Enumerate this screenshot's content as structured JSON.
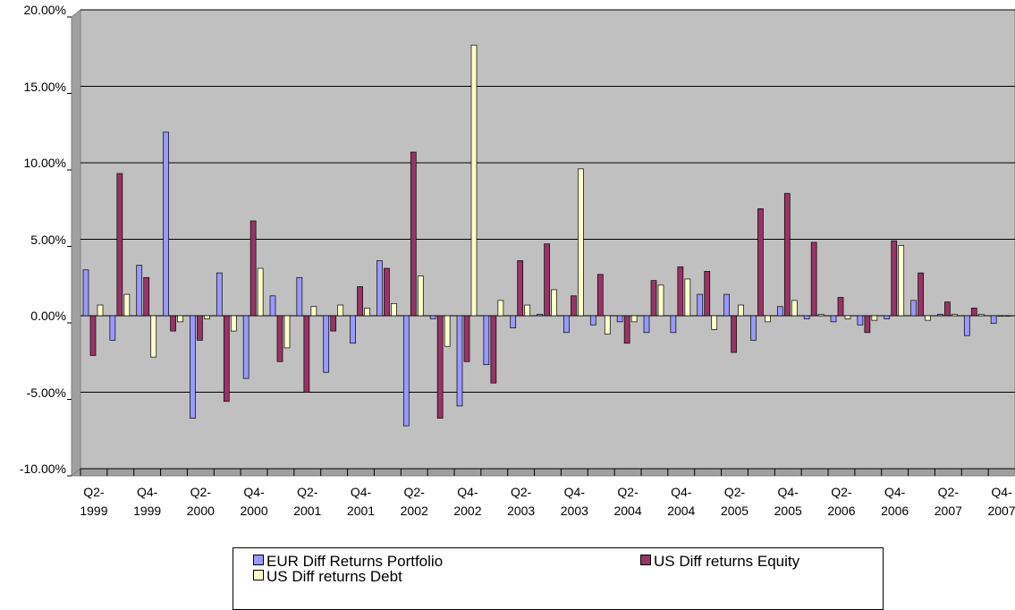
{
  "chart_data": {
    "type": "bar",
    "categories": [
      "Q2-1999",
      null,
      "Q4-1999",
      null,
      "Q2-2000",
      null,
      "Q4-2000",
      null,
      "Q2-2001",
      null,
      "Q4-2001",
      null,
      "Q2-2002",
      null,
      "Q4-2002",
      null,
      "Q2-2003",
      null,
      "Q4-2003",
      null,
      "Q2-2004",
      null,
      "Q4-2004",
      null,
      "Q2-2005",
      null,
      "Q4-2005",
      null,
      "Q2-2006",
      null,
      "Q4-2006",
      null,
      "Q2-2007",
      null,
      "Q4-2007"
    ],
    "series": [
      {
        "name": "EUR Diff Returns Portfolio",
        "color": "#9999ff",
        "values": [
          3.0,
          -1.6,
          3.3,
          12.0,
          -6.7,
          2.8,
          -4.1,
          1.3,
          2.5,
          -3.7,
          -1.8,
          3.6,
          -7.2,
          -0.2,
          -5.9,
          -3.2,
          -0.8,
          0.1,
          -1.1,
          -0.6,
          -0.4,
          -1.1,
          -1.1,
          1.4,
          1.4,
          -1.6,
          0.6,
          -0.2,
          -0.4,
          -0.6,
          -0.2,
          1.0,
          0.1,
          -1.3,
          -0.5
        ]
      },
      {
        "name": "US Diff returns Equity",
        "color": "#993366",
        "values": [
          -2.6,
          9.3,
          2.5,
          -1.0,
          -1.6,
          -5.6,
          6.2,
          -3.0,
          -5.0,
          -1.0,
          1.9,
          3.1,
          10.7,
          -6.7,
          -3.0,
          -4.4,
          3.6,
          4.7,
          1.3,
          2.7,
          -1.8,
          2.3,
          3.2,
          2.9,
          -2.4,
          7.0,
          8.0,
          4.8,
          1.2,
          -1.1,
          4.9,
          2.8,
          0.9,
          0.5,
          0.0
        ]
      },
      {
        "name": "US Diff returns Debt",
        "color": "#ffffcc",
        "values": [
          0.7,
          1.4,
          -2.7,
          -0.4,
          -0.2,
          -1.0,
          3.1,
          -2.1,
          0.6,
          0.7,
          0.5,
          0.8,
          2.6,
          -2.0,
          17.7,
          1.0,
          0.7,
          1.7,
          9.6,
          -1.2,
          -0.4,
          2.0,
          2.4,
          -0.9,
          0.7,
          -0.4,
          1.0,
          0.1,
          -0.2,
          -0.3,
          4.6,
          -0.3,
          0.1,
          0.1,
          0.0
        ]
      }
    ],
    "ylim": [
      -10,
      20
    ],
    "yticks": [
      {
        "value": -10,
        "label": "-10.00%"
      },
      {
        "value": -5,
        "label": "-5.00%"
      },
      {
        "value": 0,
        "label": "0.00%"
      },
      {
        "value": 5,
        "label": "5.00%"
      },
      {
        "value": 10,
        "label": "10.00%"
      },
      {
        "value": 15,
        "label": "15.00%"
      },
      {
        "value": 20,
        "label": "20.00%"
      }
    ],
    "grid": true,
    "background": "#c0c0c0"
  }
}
